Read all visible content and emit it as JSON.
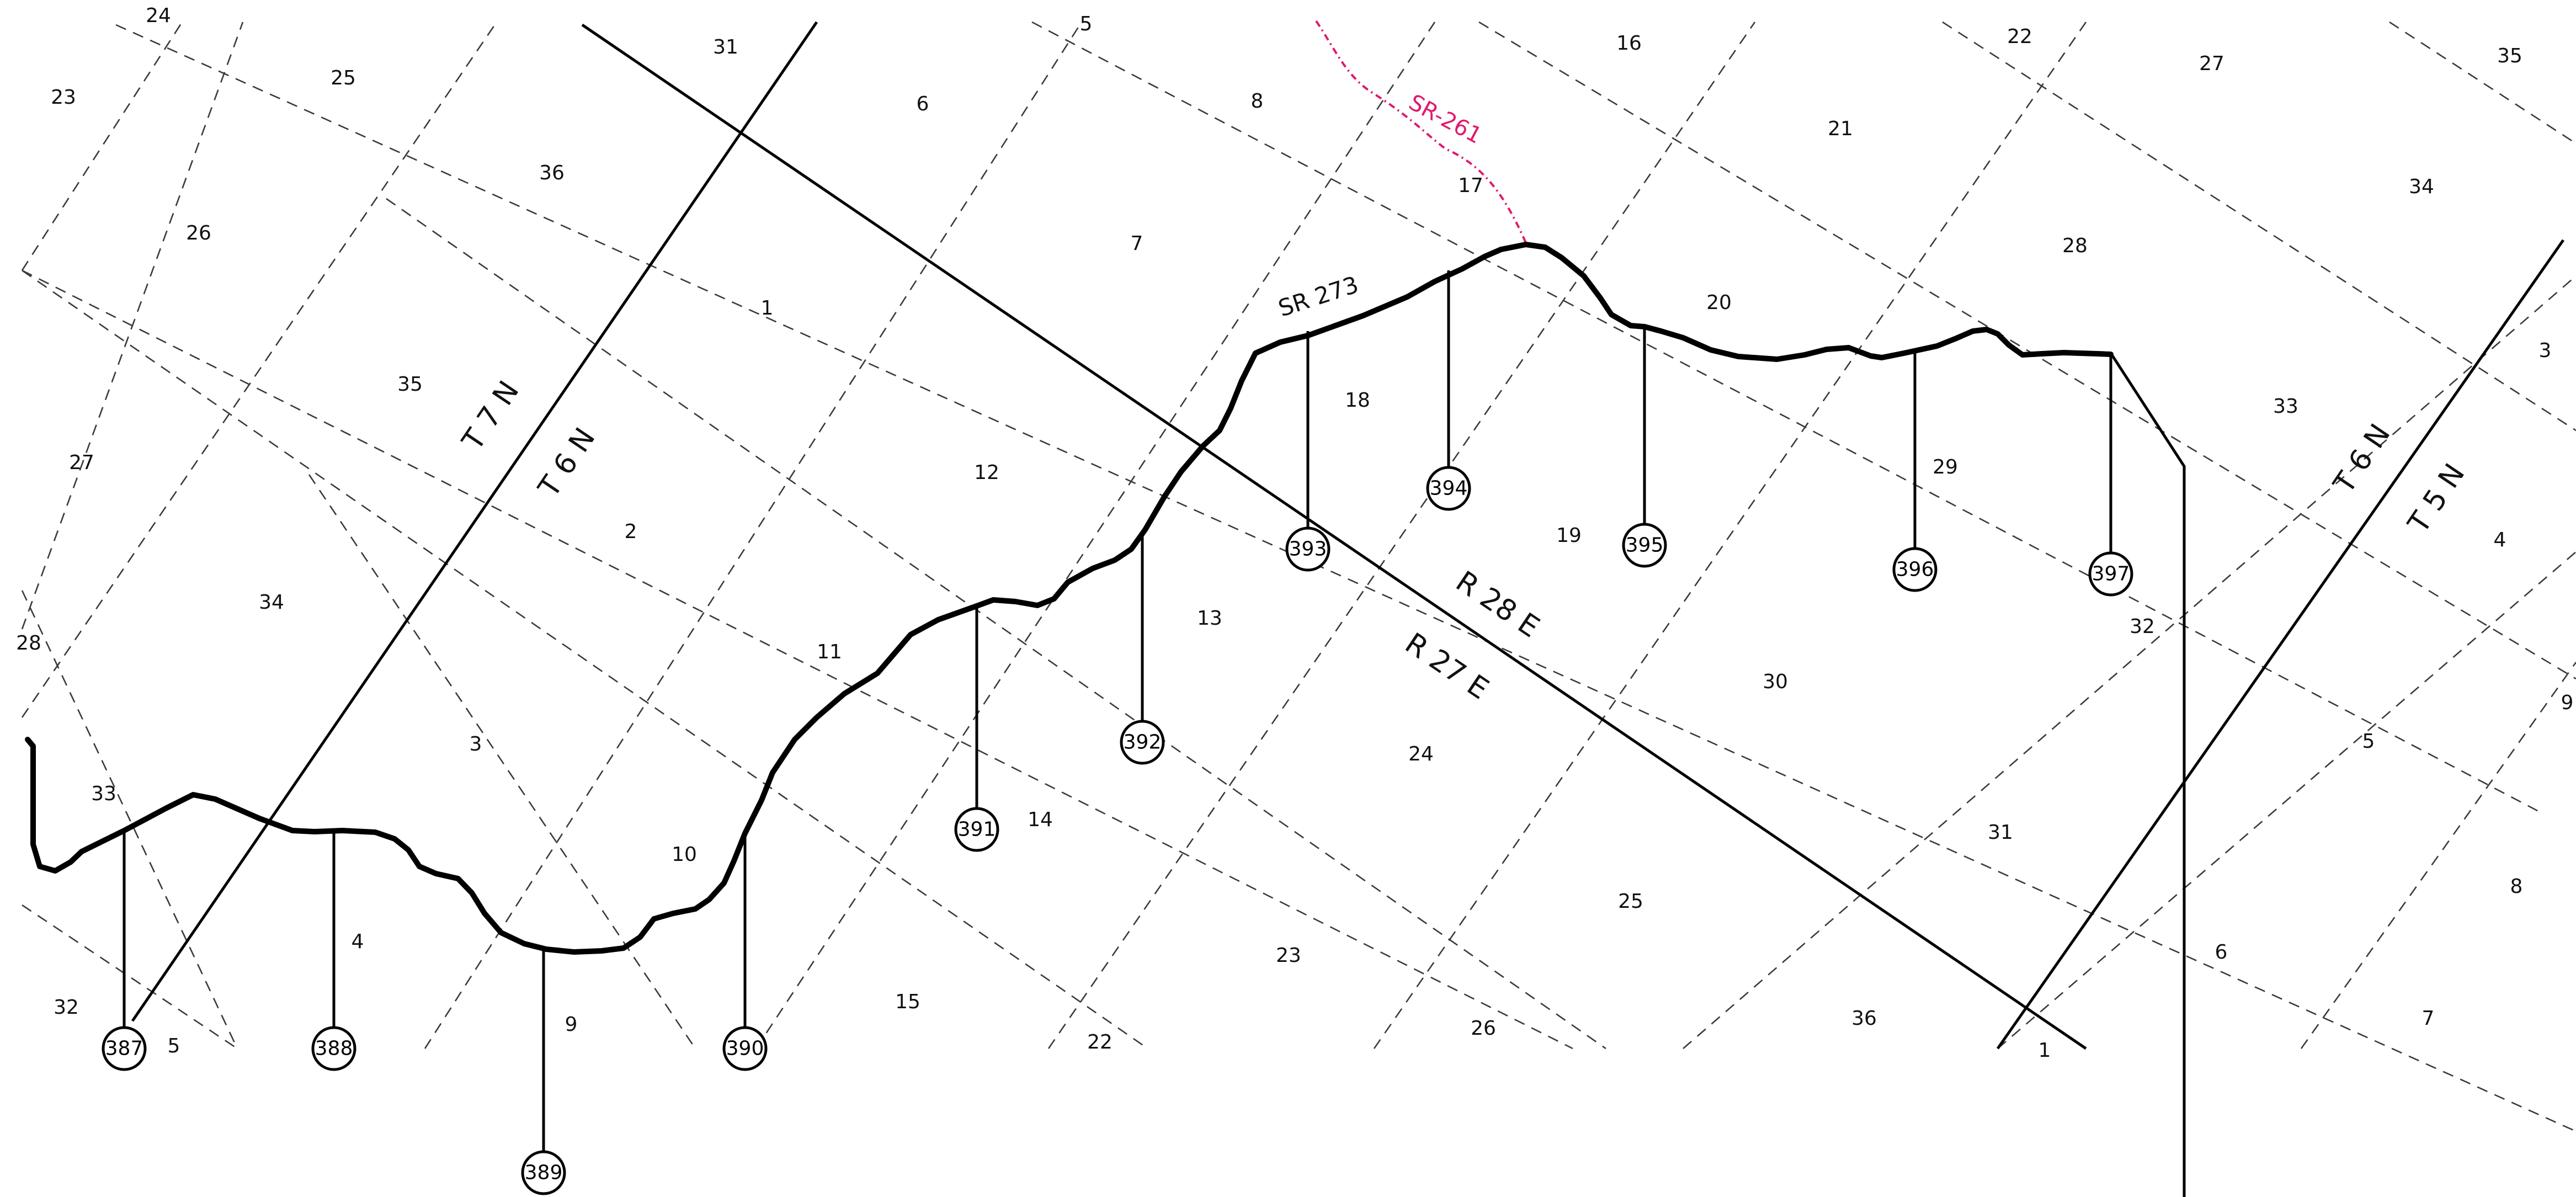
{
  "sections": [
    "24",
    "23",
    "25",
    "26",
    "36",
    "35",
    "27",
    "34",
    "28",
    "33",
    "32",
    "5",
    "31",
    "6",
    "8",
    "7",
    "1",
    "12",
    "2",
    "3",
    "11",
    "10",
    "4",
    "9",
    "14",
    "15",
    "22",
    "5",
    "16",
    "17",
    "21",
    "20",
    "18",
    "13",
    "19",
    "24",
    "23",
    "25",
    "26",
    "22",
    "27",
    "28",
    "34",
    "35",
    "3",
    "33",
    "29",
    "30",
    "31",
    "36",
    "1",
    "32",
    "4",
    "9",
    "5",
    "8",
    "7",
    "6"
  ],
  "township_labels": [
    "T 7 N",
    "T 6 N",
    "T 6 N",
    "T 5 N"
  ],
  "range_labels": [
    "R 28 E",
    "R 27 E"
  ],
  "roads": {
    "sr273": "SR 273",
    "sr261": "SR-261"
  },
  "markers": [
    "387",
    "388",
    "389",
    "390",
    "391",
    "392",
    "393",
    "394",
    "395",
    "396",
    "397"
  ],
  "colors": {
    "sr261": "#e0196e",
    "line": "#000000"
  }
}
